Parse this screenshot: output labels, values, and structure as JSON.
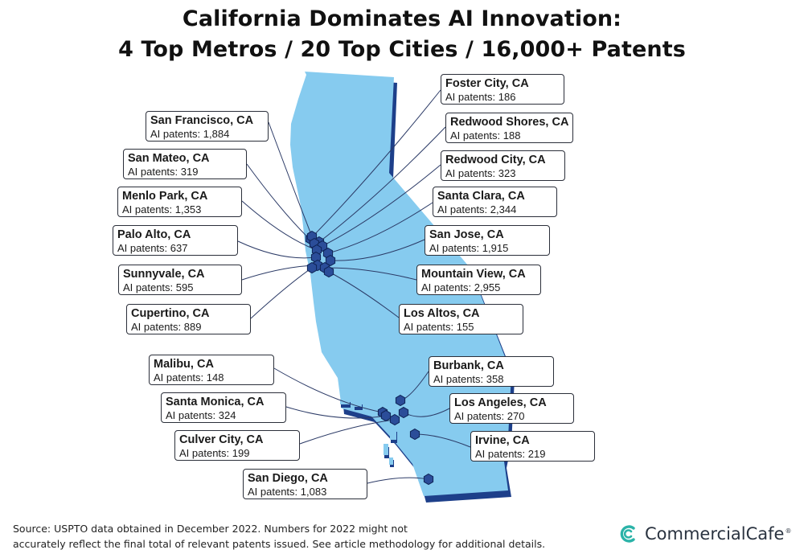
{
  "title": {
    "line1": "California Dominates AI Innovation:",
    "line2": "4 Top Metros / 20 Top Cities / 16,000+ Patents"
  },
  "cities": [
    {
      "id": "foster-city",
      "name": "Foster City, CA",
      "patents_label": "AI patents: 186",
      "patents": 186
    },
    {
      "id": "san-francisco",
      "name": "San Francisco, CA",
      "patents_label": "AI patents: 1,884",
      "patents": 1884
    },
    {
      "id": "redwood-shores",
      "name": "Redwood Shores, CA",
      "patents_label": "AI patents: 188",
      "patents": 188
    },
    {
      "id": "san-mateo",
      "name": "San Mateo, CA",
      "patents_label": "AI patents: 319",
      "patents": 319
    },
    {
      "id": "redwood-city",
      "name": "Redwood City, CA",
      "patents_label": "AI patents: 323",
      "patents": 323
    },
    {
      "id": "menlo-park",
      "name": "Menlo Park, CA",
      "patents_label": "AI patents: 1,353",
      "patents": 1353
    },
    {
      "id": "santa-clara",
      "name": "Santa Clara, CA",
      "patents_label": "AI patents: 2,344",
      "patents": 2344
    },
    {
      "id": "palo-alto",
      "name": "Palo Alto, CA",
      "patents_label": "AI patents: 637",
      "patents": 637
    },
    {
      "id": "san-jose",
      "name": "San Jose, CA",
      "patents_label": "AI patents: 1,915",
      "patents": 1915
    },
    {
      "id": "sunnyvale",
      "name": "Sunnyvale, CA",
      "patents_label": "AI patents: 595",
      "patents": 595
    },
    {
      "id": "mountain-view",
      "name": "Mountain View, CA",
      "patents_label": "AI patents: 2,955",
      "patents": 2955
    },
    {
      "id": "cupertino",
      "name": "Cupertino, CA",
      "patents_label": "AI patents: 889",
      "patents": 889
    },
    {
      "id": "los-altos",
      "name": "Los Altos, CA",
      "patents_label": "AI patents: 155",
      "patents": 155
    },
    {
      "id": "malibu",
      "name": "Malibu, CA",
      "patents_label": "AI patents: 148",
      "patents": 148
    },
    {
      "id": "burbank",
      "name": "Burbank, CA",
      "patents_label": "AI patents: 358",
      "patents": 358
    },
    {
      "id": "santa-monica",
      "name": "Santa Monica, CA",
      "patents_label": "AI patents: 324",
      "patents": 324
    },
    {
      "id": "los-angeles",
      "name": "Los Angeles, CA",
      "patents_label": "AI patents: 270",
      "patents": 270
    },
    {
      "id": "culver-city",
      "name": "Culver City, CA",
      "patents_label": "AI patents: 199",
      "patents": 199
    },
    {
      "id": "irvine",
      "name": "Irvine, CA",
      "patents_label": "AI patents: 219",
      "patents": 219
    },
    {
      "id": "san-diego",
      "name": "San Diego, CA",
      "patents_label": "AI patents: 1,083",
      "patents": 1083
    }
  ],
  "footer": {
    "line1": "Source: USPTO data obtained in December 2022. Numbers for 2022 might not",
    "line2": "accurately reflect the final total of relevant patents issued. See article methodology for additional details."
  },
  "brand": {
    "name": "CommercialCafe",
    "reg": "®",
    "icon": "commercialcafe-logo-icon"
  },
  "colors": {
    "land": "#86CBEF",
    "land_shadow": "#1D3F8A",
    "marker": "#2B4D99",
    "marker_stroke": "#0E2355",
    "leader": "#2b3a66"
  }
}
